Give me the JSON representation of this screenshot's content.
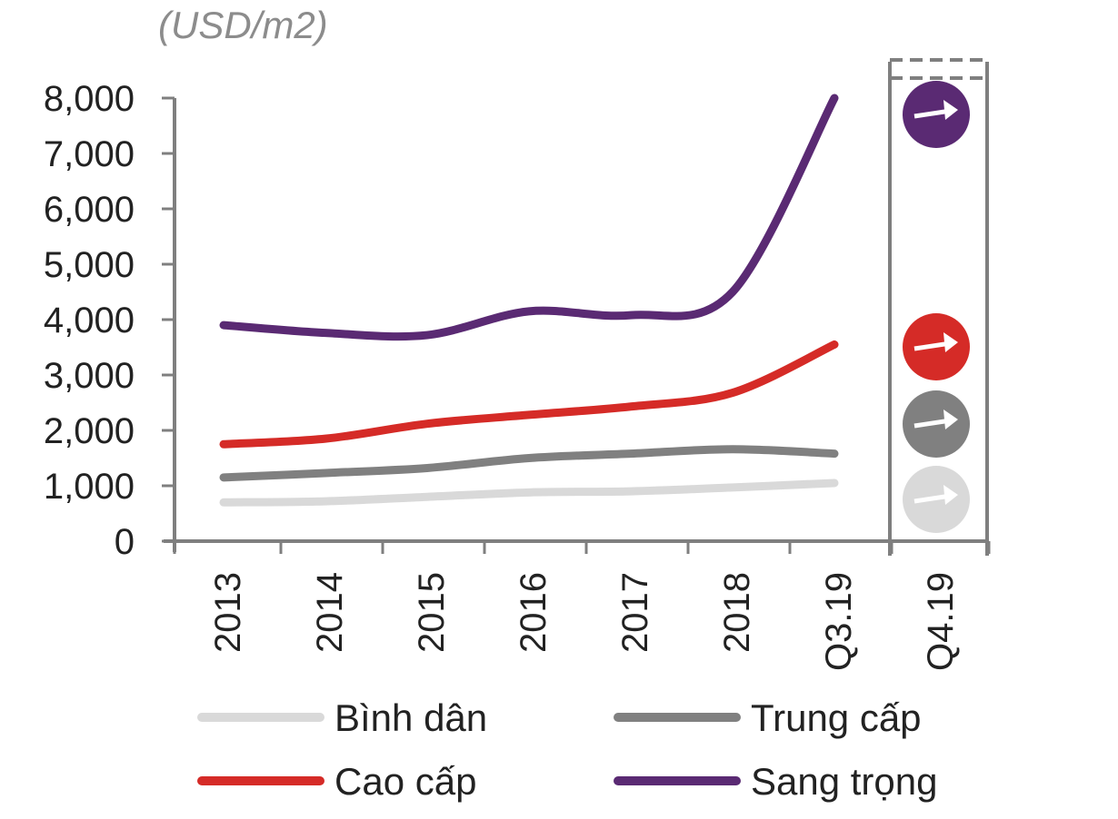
{
  "chart_data": {
    "type": "line",
    "unit_label": "(USD/m2)",
    "x": [
      "2013",
      "2014",
      "2015",
      "2016",
      "2017",
      "2018",
      "Q3.19"
    ],
    "forecast_x": "Q4.19",
    "ylim": [
      0,
      8000
    ],
    "yticks": [
      "0",
      "1,000",
      "2,000",
      "3,000",
      "4,000",
      "5,000",
      "6,000",
      "7,000",
      "8,000"
    ],
    "ytick_values": [
      0,
      1000,
      2000,
      3000,
      4000,
      5000,
      6000,
      7000,
      8000
    ],
    "series": [
      {
        "name": "Bình dân",
        "color": "#d9d9d9",
        "values": [
          700,
          720,
          800,
          880,
          900,
          970,
          1050
        ],
        "forecast": "up"
      },
      {
        "name": "Trung cấp",
        "color": "#808080",
        "values": [
          1150,
          1230,
          1320,
          1500,
          1580,
          1660,
          1580
        ],
        "forecast": "up"
      },
      {
        "name": "Cao cấp",
        "color": "#d52b27",
        "values": [
          1750,
          1850,
          2120,
          2280,
          2430,
          2680,
          3550
        ],
        "forecast": "up"
      },
      {
        "name": "Sang trọng",
        "color": "#5a2a73",
        "values": [
          3900,
          3760,
          3720,
          4150,
          4080,
          4500,
          8000
        ],
        "forecast": "up"
      }
    ],
    "forecast_icon": "arrow-right-icon",
    "legend_position": "bottom"
  }
}
